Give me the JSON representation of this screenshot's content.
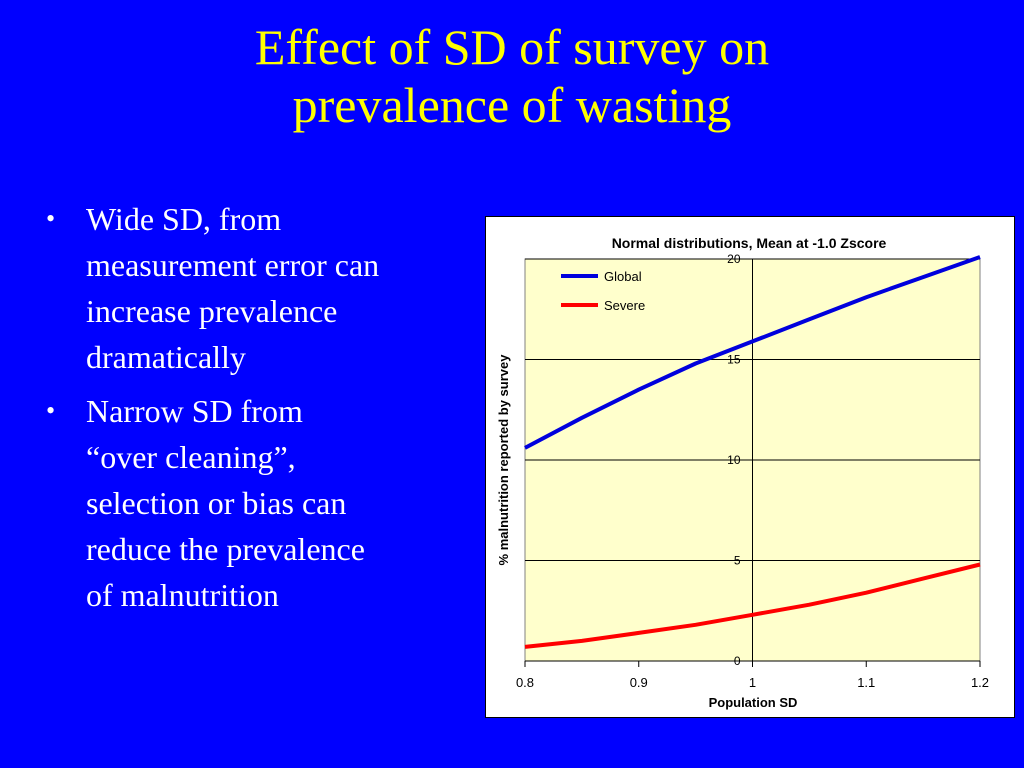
{
  "slide": {
    "title_lines": [
      "Effect of SD of survey on",
      "prevalence of wasting"
    ],
    "bullets": [
      [
        "Wide SD, from",
        "measurement error can",
        "increase prevalence",
        "dramatically"
      ],
      [
        "Narrow SD from",
        "“over cleaning”,",
        "selection or bias can",
        "reduce the prevalence",
        "of malnutrition"
      ]
    ]
  },
  "colors": {
    "background": "#0000FF",
    "title": "#FFFF00",
    "text": "#FFFFFF",
    "plot_area": "#FFFFCC",
    "global": "#0000DD",
    "severe": "#FF0000"
  },
  "chart_data": {
    "type": "line",
    "title": "Normal distributions, Mean at -1.0 Zscore",
    "xlabel": "Population SD",
    "ylabel": "% malnutrition reported by survey",
    "xlim": [
      0.8,
      1.2
    ],
    "ylim": [
      0,
      20
    ],
    "xticks": [
      "0.8",
      "0.9",
      "1",
      "1.1",
      "1.2"
    ],
    "yticks": [
      "0",
      "5",
      "10",
      "15",
      "20"
    ],
    "grid": true,
    "legend_position": "top-left",
    "series": [
      {
        "name": "Global",
        "x": [
          0.8,
          0.85,
          0.9,
          0.95,
          1.0,
          1.05,
          1.1,
          1.15,
          1.2
        ],
        "y": [
          10.6,
          12.1,
          13.5,
          14.8,
          15.9,
          17.0,
          18.1,
          19.1,
          20.1
        ]
      },
      {
        "name": "Severe",
        "x": [
          0.8,
          0.85,
          0.9,
          0.95,
          1.0,
          1.05,
          1.1,
          1.15,
          1.2
        ],
        "y": [
          0.7,
          1.0,
          1.4,
          1.8,
          2.3,
          2.8,
          3.4,
          4.1,
          4.8
        ]
      }
    ]
  }
}
